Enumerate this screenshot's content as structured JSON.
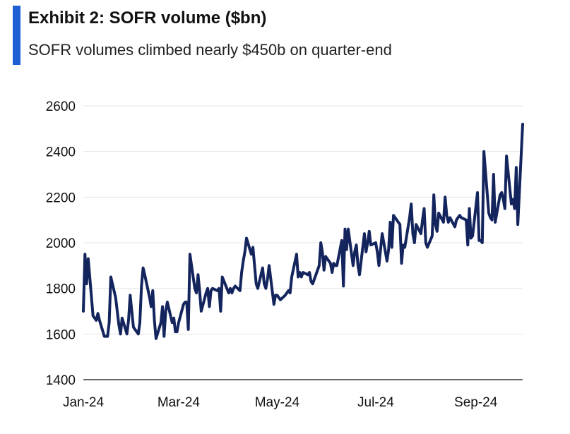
{
  "header": {
    "title": "Exhibit 2: SOFR volume ($bn)",
    "subtitle": "SOFR volumes climbed nearly $450b on quarter-end",
    "accent_color": "#1f5fd6"
  },
  "chart_data": {
    "type": "line",
    "title": "Exhibit 2: SOFR volume ($bn)",
    "subtitle": "SOFR volumes climbed nearly $450b on quarter-end",
    "xlabel": "",
    "ylabel": "",
    "ylim": [
      1400,
      2600
    ],
    "yticks": [
      1400,
      1600,
      1800,
      2000,
      2200,
      2400,
      2600
    ],
    "xlim": [
      "2024-01-02",
      "2024-09-30"
    ],
    "xticks": [
      {
        "label": "Jan-24",
        "date": "2024-01-02"
      },
      {
        "label": "Mar-24",
        "date": "2024-03-01"
      },
      {
        "label": "May-24",
        "date": "2024-05-01"
      },
      {
        "label": "Jul-24",
        "date": "2024-07-01"
      },
      {
        "label": "Sep-24",
        "date": "2024-09-01"
      }
    ],
    "grid": "horizontal",
    "line_color": "#14255e",
    "series": [
      {
        "name": "",
        "points": [
          [
            "2024-01-02",
            1700
          ],
          [
            "2024-01-03",
            1950
          ],
          [
            "2024-01-04",
            1820
          ],
          [
            "2024-01-05",
            1930
          ],
          [
            "2024-01-08",
            1680
          ],
          [
            "2024-01-09",
            1670
          ],
          [
            "2024-01-10",
            1660
          ],
          [
            "2024-01-11",
            1690
          ],
          [
            "2024-01-12",
            1660
          ],
          [
            "2024-01-15",
            1590
          ],
          [
            "2024-01-16",
            1590
          ],
          [
            "2024-01-17",
            1590
          ],
          [
            "2024-01-18",
            1650
          ],
          [
            "2024-01-19",
            1850
          ],
          [
            "2024-01-22",
            1760
          ],
          [
            "2024-01-23",
            1700
          ],
          [
            "2024-01-24",
            1640
          ],
          [
            "2024-01-25",
            1600
          ],
          [
            "2024-01-26",
            1670
          ],
          [
            "2024-01-29",
            1600
          ],
          [
            "2024-01-30",
            1660
          ],
          [
            "2024-01-31",
            1770
          ],
          [
            "2024-02-01",
            1700
          ],
          [
            "2024-02-02",
            1630
          ],
          [
            "2024-02-05",
            1600
          ],
          [
            "2024-02-06",
            1650
          ],
          [
            "2024-02-07",
            1810
          ],
          [
            "2024-02-08",
            1890
          ],
          [
            "2024-02-09",
            1860
          ],
          [
            "2024-02-12",
            1760
          ],
          [
            "2024-02-13",
            1720
          ],
          [
            "2024-02-14",
            1790
          ],
          [
            "2024-02-15",
            1660
          ],
          [
            "2024-02-16",
            1580
          ],
          [
            "2024-02-19",
            1650
          ],
          [
            "2024-02-20",
            1720
          ],
          [
            "2024-02-21",
            1590
          ],
          [
            "2024-02-22",
            1700
          ],
          [
            "2024-02-23",
            1740
          ],
          [
            "2024-02-26",
            1650
          ],
          [
            "2024-02-27",
            1670
          ],
          [
            "2024-02-28",
            1610
          ],
          [
            "2024-02-29",
            1610
          ],
          [
            "2024-03-01",
            1650
          ],
          [
            "2024-03-04",
            1730
          ],
          [
            "2024-03-05",
            1740
          ],
          [
            "2024-03-06",
            1740
          ],
          [
            "2024-03-07",
            1620
          ],
          [
            "2024-03-08",
            1950
          ],
          [
            "2024-03-11",
            1800
          ],
          [
            "2024-03-12",
            1780
          ],
          [
            "2024-03-13",
            1860
          ],
          [
            "2024-03-14",
            1790
          ],
          [
            "2024-03-15",
            1700
          ],
          [
            "2024-03-18",
            1780
          ],
          [
            "2024-03-19",
            1800
          ],
          [
            "2024-03-20",
            1720
          ],
          [
            "2024-03-21",
            1790
          ],
          [
            "2024-03-22",
            1800
          ],
          [
            "2024-03-25",
            1790
          ],
          [
            "2024-03-26",
            1800
          ],
          [
            "2024-03-27",
            1700
          ],
          [
            "2024-03-28",
            1850
          ],
          [
            "2024-04-01",
            1780
          ],
          [
            "2024-04-02",
            1800
          ],
          [
            "2024-04-03",
            1780
          ],
          [
            "2024-04-04",
            1800
          ],
          [
            "2024-04-05",
            1810
          ],
          [
            "2024-04-08",
            1790
          ],
          [
            "2024-04-09",
            1870
          ],
          [
            "2024-04-10",
            1920
          ],
          [
            "2024-04-11",
            1960
          ],
          [
            "2024-04-12",
            2020
          ],
          [
            "2024-04-15",
            1950
          ],
          [
            "2024-04-16",
            1980
          ],
          [
            "2024-04-17",
            1900
          ],
          [
            "2024-04-18",
            1820
          ],
          [
            "2024-04-19",
            1800
          ],
          [
            "2024-04-22",
            1890
          ],
          [
            "2024-04-23",
            1820
          ],
          [
            "2024-04-24",
            1800
          ],
          [
            "2024-04-25",
            1840
          ],
          [
            "2024-04-26",
            1900
          ],
          [
            "2024-04-29",
            1730
          ],
          [
            "2024-04-30",
            1770
          ],
          [
            "2024-05-01",
            1770
          ],
          [
            "2024-05-02",
            1760
          ],
          [
            "2024-05-03",
            1750
          ],
          [
            "2024-05-06",
            1770
          ],
          [
            "2024-05-07",
            1780
          ],
          [
            "2024-05-08",
            1790
          ],
          [
            "2024-05-09",
            1780
          ],
          [
            "2024-05-10",
            1850
          ],
          [
            "2024-05-13",
            1950
          ],
          [
            "2024-05-14",
            1850
          ],
          [
            "2024-05-15",
            1870
          ],
          [
            "2024-05-16",
            1850
          ],
          [
            "2024-05-17",
            1870
          ],
          [
            "2024-05-20",
            1860
          ],
          [
            "2024-05-21",
            1870
          ],
          [
            "2024-05-22",
            1830
          ],
          [
            "2024-05-23",
            1820
          ],
          [
            "2024-05-24",
            1840
          ],
          [
            "2024-05-27",
            1900
          ],
          [
            "2024-05-28",
            2000
          ],
          [
            "2024-05-29",
            1960
          ],
          [
            "2024-05-30",
            1880
          ],
          [
            "2024-05-31",
            1940
          ],
          [
            "2024-06-03",
            1910
          ],
          [
            "2024-06-04",
            1870
          ],
          [
            "2024-06-05",
            1910
          ],
          [
            "2024-06-06",
            1900
          ],
          [
            "2024-06-07",
            1900
          ],
          [
            "2024-06-10",
            2010
          ],
          [
            "2024-06-11",
            1810
          ],
          [
            "2024-06-12",
            2060
          ],
          [
            "2024-06-13",
            1970
          ],
          [
            "2024-06-14",
            2060
          ],
          [
            "2024-06-17",
            1900
          ],
          [
            "2024-06-18",
            1960
          ],
          [
            "2024-06-19",
            1990
          ],
          [
            "2024-06-20",
            1900
          ],
          [
            "2024-06-21",
            1860
          ],
          [
            "2024-06-24",
            2040
          ],
          [
            "2024-06-25",
            1960
          ],
          [
            "2024-06-26",
            2000
          ],
          [
            "2024-06-27",
            2050
          ],
          [
            "2024-06-28",
            1990
          ],
          [
            "2024-07-01",
            2000
          ],
          [
            "2024-07-02",
            1960
          ],
          [
            "2024-07-03",
            1900
          ],
          [
            "2024-07-05",
            2040
          ],
          [
            "2024-07-08",
            1920
          ],
          [
            "2024-07-09",
            1970
          ],
          [
            "2024-07-10",
            2090
          ],
          [
            "2024-07-11",
            1980
          ],
          [
            "2024-07-12",
            2120
          ],
          [
            "2024-07-15",
            2090
          ],
          [
            "2024-07-16",
            2080
          ],
          [
            "2024-07-17",
            1910
          ],
          [
            "2024-07-18",
            1990
          ],
          [
            "2024-07-19",
            1980
          ],
          [
            "2024-07-22",
            2110
          ],
          [
            "2024-07-23",
            2170
          ],
          [
            "2024-07-24",
            2040
          ],
          [
            "2024-07-25",
            2000
          ],
          [
            "2024-07-26",
            2080
          ],
          [
            "2024-07-29",
            2040
          ],
          [
            "2024-07-30",
            2100
          ],
          [
            "2024-07-31",
            2150
          ],
          [
            "2024-08-01",
            2000
          ],
          [
            "2024-08-02",
            1980
          ],
          [
            "2024-08-05",
            2030
          ],
          [
            "2024-08-06",
            2210
          ],
          [
            "2024-08-07",
            2080
          ],
          [
            "2024-08-08",
            2050
          ],
          [
            "2024-08-09",
            2130
          ],
          [
            "2024-08-12",
            2090
          ],
          [
            "2024-08-13",
            2200
          ],
          [
            "2024-08-14",
            2120
          ],
          [
            "2024-08-15",
            2090
          ],
          [
            "2024-08-16",
            2110
          ],
          [
            "2024-08-19",
            2070
          ],
          [
            "2024-08-20",
            2100
          ],
          [
            "2024-08-21",
            2110
          ],
          [
            "2024-08-22",
            2120
          ],
          [
            "2024-08-23",
            2110
          ],
          [
            "2024-08-26",
            2100
          ],
          [
            "2024-08-27",
            1990
          ],
          [
            "2024-08-28",
            2150
          ],
          [
            "2024-08-29",
            2020
          ],
          [
            "2024-08-30",
            2030
          ],
          [
            "2024-09-02",
            2220
          ],
          [
            "2024-09-03",
            2010
          ],
          [
            "2024-09-04",
            2010
          ],
          [
            "2024-09-05",
            2000
          ],
          [
            "2024-09-06",
            2400
          ],
          [
            "2024-09-09",
            2130
          ],
          [
            "2024-09-10",
            2110
          ],
          [
            "2024-09-11",
            2100
          ],
          [
            "2024-09-12",
            2300
          ],
          [
            "2024-09-13",
            2090
          ],
          [
            "2024-09-16",
            2210
          ],
          [
            "2024-09-17",
            2220
          ],
          [
            "2024-09-18",
            2190
          ],
          [
            "2024-09-19",
            2150
          ],
          [
            "2024-09-20",
            2380
          ],
          [
            "2024-09-23",
            2170
          ],
          [
            "2024-09-24",
            2190
          ],
          [
            "2024-09-25",
            2150
          ],
          [
            "2024-09-26",
            2330
          ],
          [
            "2024-09-27",
            2080
          ],
          [
            "2024-09-30",
            2520
          ]
        ]
      }
    ]
  }
}
